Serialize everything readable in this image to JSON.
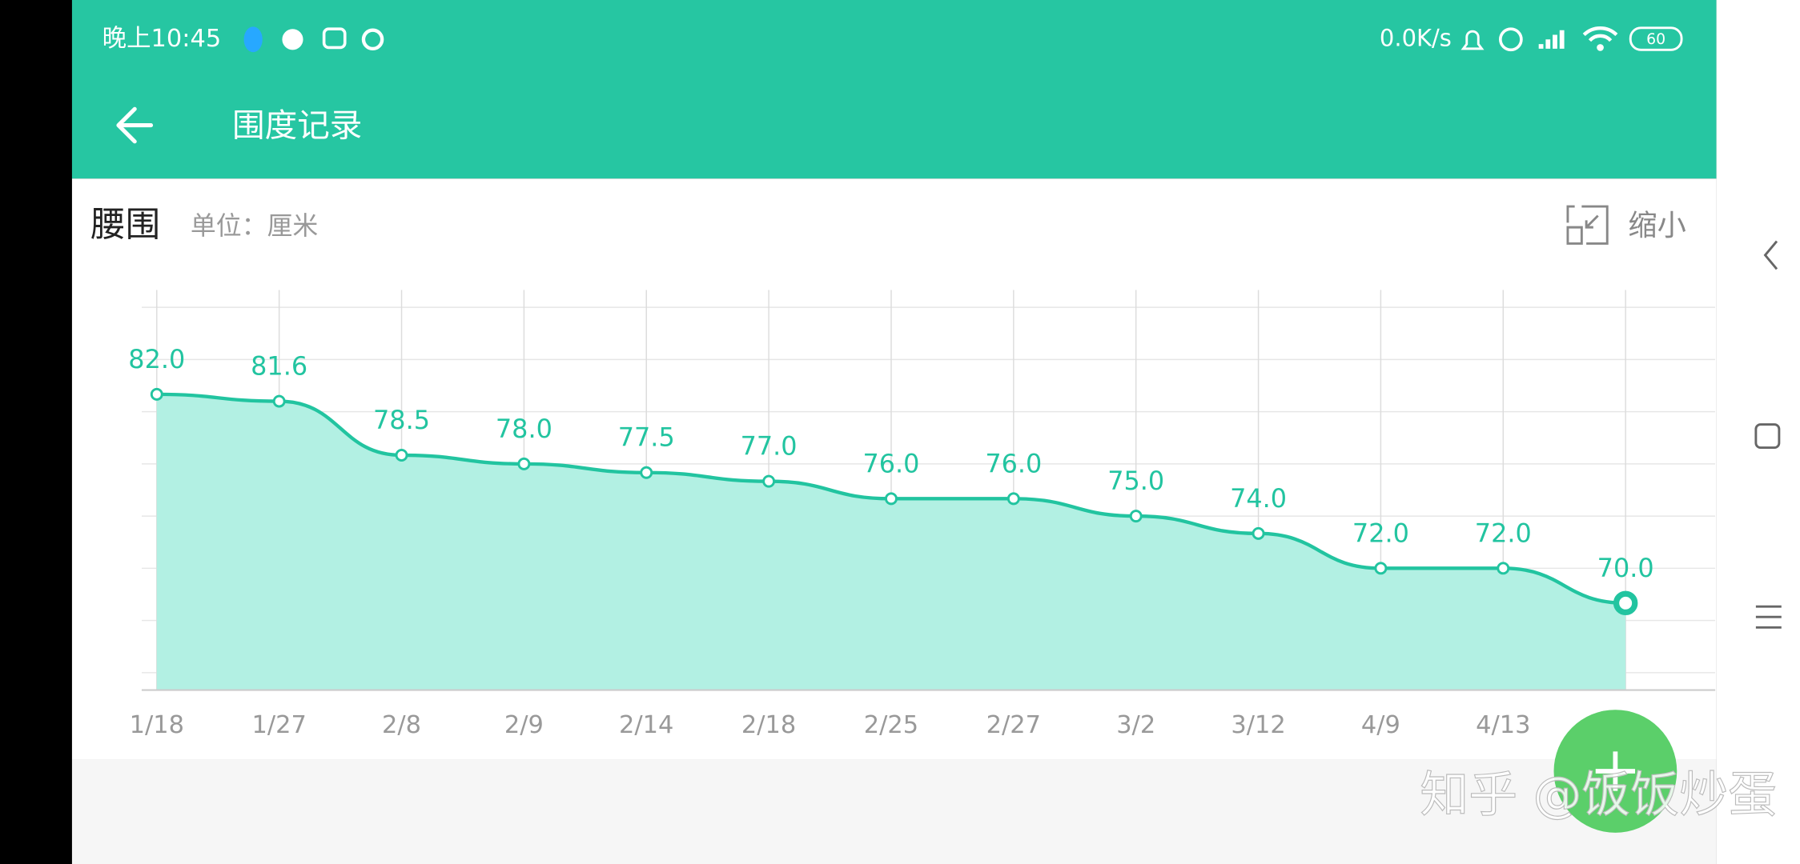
{
  "status_bar": {
    "time": "晚上10:45",
    "speed": "0.0K/s",
    "battery": "60"
  },
  "app_bar": {
    "title": "围度记录"
  },
  "panel": {
    "toggle": "缩小"
  },
  "chart_data": {
    "type": "line",
    "title": "腰围",
    "subtitle": "单位：厘米",
    "categories": [
      "1/18",
      "1/27",
      "2/8",
      "2/9",
      "2/14",
      "2/18",
      "2/25",
      "2/27",
      "3/2",
      "3/12",
      "4/9",
      "4/13",
      null
    ],
    "series": [
      {
        "name": "腰围",
        "color": "#22c4a0",
        "values": [
          82.0,
          81.6,
          78.5,
          78.0,
          77.5,
          77.0,
          76.0,
          76.0,
          75.0,
          74.0,
          72.0,
          72.0,
          70.0
        ],
        "value_labels": [
          "82.0",
          "81.6",
          "78.5",
          "78.0",
          "77.5",
          "77.0",
          "76.0",
          "76.0",
          "75.0",
          "74.0",
          "72.0",
          "72.0",
          "70.0"
        ]
      }
    ],
    "ylim": [
      65,
      88
    ],
    "yticks": [
      66,
      69,
      72,
      75,
      78,
      81,
      84,
      87
    ],
    "grid": true,
    "area": true
  },
  "watermark": "知乎 @饭饭炒蛋"
}
